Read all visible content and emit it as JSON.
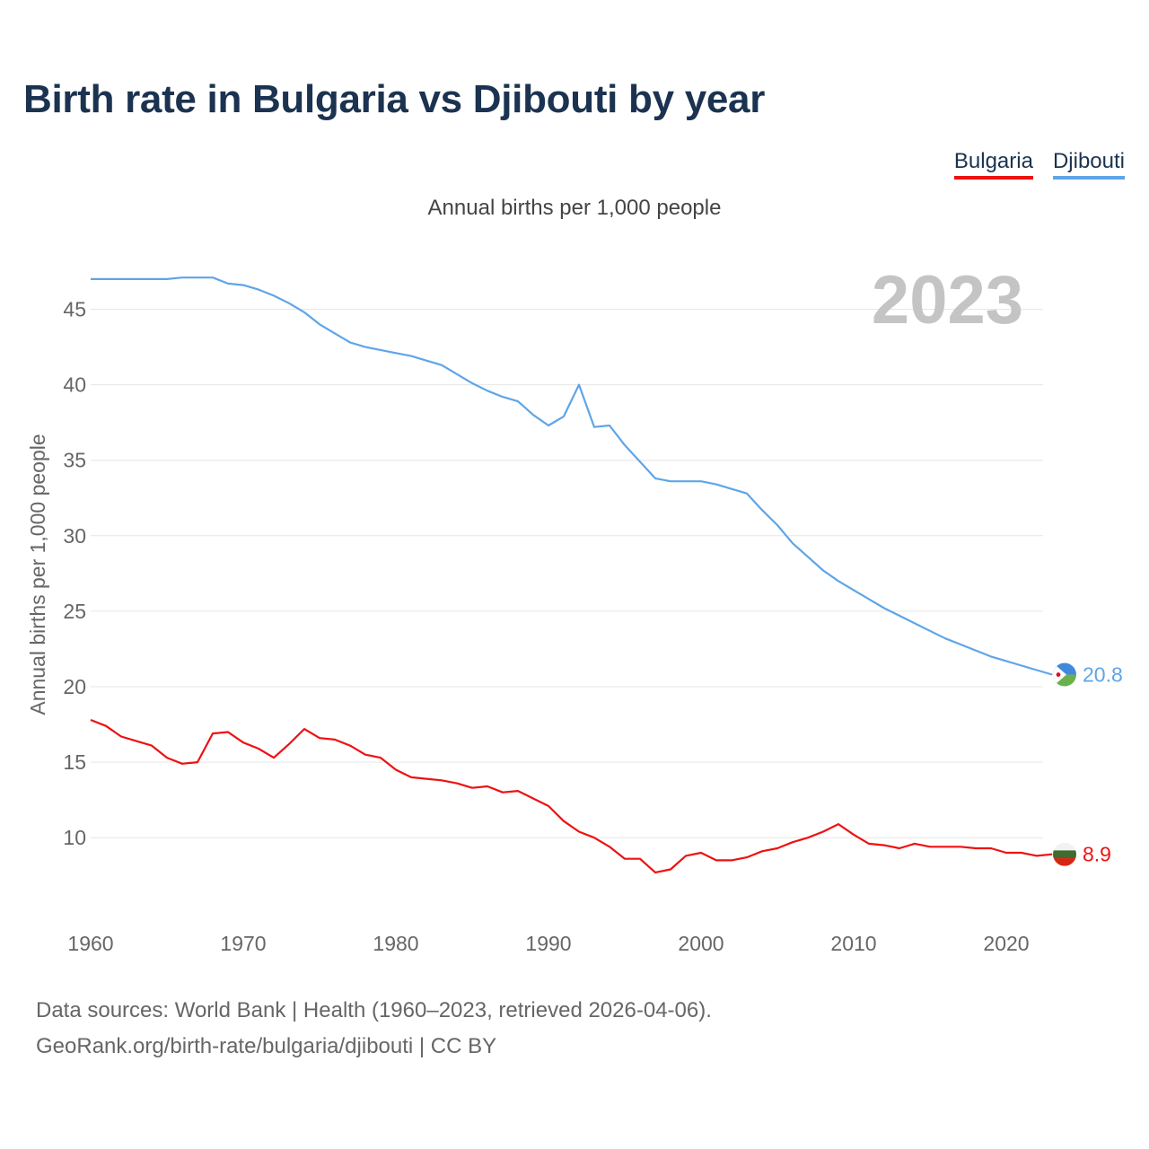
{
  "title": "Birth rate in Bulgaria vs Djibouti by year",
  "subtitle": "Annual births per 1,000 people",
  "legend": [
    {
      "name": "Bulgaria",
      "color": "#ee1111"
    },
    {
      "name": "Djibouti",
      "color": "#5ea5e8"
    }
  ],
  "year_label": "2023",
  "footer": {
    "sources": "Data sources: World Bank | Health (1960–2023, retrieved 2026-04-06).",
    "link": "GeoRank.org/birth-rate/bulgaria/djibouti | CC BY"
  },
  "chart_data": {
    "type": "line",
    "ylabel": "Annual births per 1,000 people",
    "xlabel": "",
    "xlim": [
      1960,
      2023
    ],
    "ylim": [
      5,
      48
    ],
    "yticks": [
      10,
      15,
      20,
      25,
      30,
      35,
      40,
      45
    ],
    "xticks": [
      1960,
      1970,
      1980,
      1990,
      2000,
      2010,
      2020
    ],
    "grid": true,
    "x": [
      1960,
      1961,
      1962,
      1963,
      1964,
      1965,
      1966,
      1967,
      1968,
      1969,
      1970,
      1971,
      1972,
      1973,
      1974,
      1975,
      1976,
      1977,
      1978,
      1979,
      1980,
      1981,
      1982,
      1983,
      1984,
      1985,
      1986,
      1987,
      1988,
      1989,
      1990,
      1991,
      1992,
      1993,
      1994,
      1995,
      1996,
      1997,
      1998,
      1999,
      2000,
      2001,
      2002,
      2003,
      2004,
      2005,
      2006,
      2007,
      2008,
      2009,
      2010,
      2011,
      2012,
      2013,
      2014,
      2015,
      2016,
      2017,
      2018,
      2019,
      2020,
      2021,
      2022,
      2023
    ],
    "series": [
      {
        "name": "Bulgaria",
        "color": "#ee1111",
        "end_label": "8.9",
        "values": [
          17.8,
          17.4,
          16.7,
          16.4,
          16.1,
          15.3,
          14.9,
          15.0,
          16.9,
          17.0,
          16.3,
          15.9,
          15.3,
          16.2,
          17.2,
          16.6,
          16.5,
          16.1,
          15.5,
          15.3,
          14.5,
          14.0,
          13.9,
          13.8,
          13.6,
          13.3,
          13.4,
          13.0,
          13.1,
          12.6,
          12.1,
          11.1,
          10.4,
          10.0,
          9.4,
          8.6,
          8.6,
          7.7,
          7.9,
          8.8,
          9.0,
          8.5,
          8.5,
          8.7,
          9.1,
          9.3,
          9.7,
          10.0,
          10.4,
          10.9,
          10.2,
          9.6,
          9.5,
          9.3,
          9.6,
          9.4,
          9.4,
          9.4,
          9.3,
          9.3,
          9.0,
          9.0,
          8.8,
          8.9
        ]
      },
      {
        "name": "Djibouti",
        "color": "#5ea5e8",
        "end_label": "20.8",
        "values": [
          47.0,
          47.0,
          47.0,
          47.0,
          47.0,
          47.0,
          47.1,
          47.1,
          47.1,
          46.7,
          46.6,
          46.3,
          45.9,
          45.4,
          44.8,
          44.0,
          43.4,
          42.8,
          42.5,
          42.3,
          42.1,
          41.9,
          41.6,
          41.3,
          40.7,
          40.1,
          39.6,
          39.2,
          38.9,
          38.0,
          37.3,
          37.9,
          40.0,
          37.2,
          37.3,
          36.0,
          34.9,
          33.8,
          33.6,
          33.6,
          33.6,
          33.4,
          33.1,
          32.8,
          31.7,
          30.7,
          29.5,
          28.6,
          27.7,
          27.0,
          26.4,
          25.8,
          25.2,
          24.7,
          24.2,
          23.7,
          23.2,
          22.8,
          22.4,
          22.0,
          21.7,
          21.4,
          21.1,
          20.8
        ]
      }
    ]
  }
}
